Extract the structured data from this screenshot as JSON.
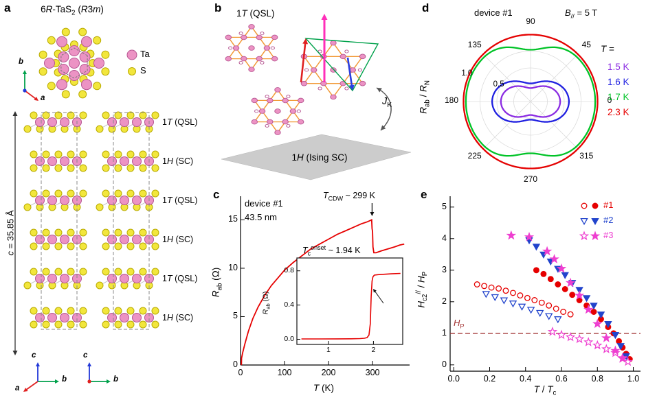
{
  "figure": {
    "background": "#ffffff",
    "panels": {
      "a": {
        "label": "a",
        "title_html": "6<i>R</i>-TaS<sub>2</sub> (<i>R</i>3<i>m</i>)",
        "legend": {
          "ta_label": "Ta",
          "s_label": "S"
        },
        "atom_colors": {
          "ta": "#ec93c4",
          "ta_stroke": "#b65591",
          "s": "#f2e63c",
          "s_stroke": "#b9ab00"
        },
        "layer_labels_html": [
          "1<i>T</i> (QSL)",
          "1<i>H</i> (SC)",
          "1<i>T</i> (QSL)",
          "1<i>H</i> (SC)",
          "1<i>T</i> (QSL)",
          "1<i>H</i> (SC)"
        ],
        "c_axis_label_html": "<i>c</i> = 35.85 Å",
        "axis_letters": {
          "a": "a",
          "b": "b",
          "c": "c"
        },
        "axis_colors": {
          "a": "#e02020",
          "b": "#00a14b",
          "c": "#2238d8"
        }
      },
      "b": {
        "label": "b",
        "top_label_html": "1<i>T</i> (QSL)",
        "plane_label_html": "1<i>H</i> (Ising SC)",
        "coupling_label_html": "<i>J</i><sub>K</sub>",
        "colors": {
          "atom": "#ec93c4",
          "atom_stroke": "#b65591",
          "bond": "#f29a38",
          "spin_magenta": "#ff2fb9",
          "spin_red": "#e02020",
          "spin_blue": "#2b3fe0",
          "cell": "#00a14b",
          "plane": "#cccccc"
        }
      },
      "c": {
        "label": "c"
      },
      "d": {
        "label": "d"
      },
      "e": {
        "label": "e"
      }
    }
  },
  "chart_data": [
    {
      "panel": "c",
      "type": "line",
      "device": "device #1",
      "thickness": "43.5 nm",
      "cdw_annotation_html": "<i>T</i><sub>CDW</sub> ~ 299 K",
      "cdw_temperature_K": 299,
      "xlabel_html": "<i>T</i> (K)",
      "ylabel_html": "<i>R</i><sub>ab</sub> (Ω)",
      "xlim": [
        0,
        378
      ],
      "ylim": [
        0,
        17.3
      ],
      "xticks": [
        0,
        100,
        200,
        300
      ],
      "yticks": [
        0,
        5,
        10,
        15
      ],
      "line_color": "#e60000",
      "points_T_R": [
        [
          1.5,
          0.0
        ],
        [
          2.0,
          0.05
        ],
        [
          2.3,
          0.7
        ],
        [
          5,
          1.3
        ],
        [
          10,
          2.2
        ],
        [
          18,
          3.5
        ],
        [
          28,
          4.8
        ],
        [
          40,
          6.0
        ],
        [
          55,
          7.2
        ],
        [
          70,
          8.2
        ],
        [
          85,
          9.0
        ],
        [
          100,
          9.8
        ],
        [
          120,
          10.6
        ],
        [
          140,
          11.3
        ],
        [
          160,
          12.0
        ],
        [
          180,
          12.5
        ],
        [
          200,
          13.0
        ],
        [
          220,
          13.5
        ],
        [
          240,
          13.9
        ],
        [
          260,
          14.3
        ],
        [
          275,
          14.6
        ],
        [
          288,
          14.8
        ],
        [
          296,
          14.95
        ],
        [
          298,
          15.0
        ],
        [
          299,
          14.1
        ],
        [
          300,
          13.8
        ],
        [
          301,
          12.2
        ],
        [
          303,
          11.6
        ],
        [
          308,
          11.6
        ],
        [
          320,
          11.8
        ],
        [
          335,
          12.0
        ],
        [
          350,
          12.2
        ],
        [
          362,
          12.4
        ],
        [
          372,
          12.5
        ]
      ],
      "inset": {
        "title_html": "<i>T</i><sub>c</sub><sup>onset</sup> ~ 1.94 K",
        "ylabel_html": "<i>R</i><sub>ab</sub> (Ω)",
        "tc_onset_K": 1.94,
        "xlim": [
          0.3,
          2.65
        ],
        "ylim": [
          -0.06,
          0.95
        ],
        "xticks": [
          1,
          2
        ],
        "yticks": [
          "0.0",
          "0.4",
          "0.8"
        ],
        "points_T_R": [
          [
            0.4,
            0.004
          ],
          [
            0.8,
            0.004
          ],
          [
            1.2,
            0.005
          ],
          [
            1.5,
            0.006
          ],
          [
            1.7,
            0.008
          ],
          [
            1.8,
            0.012
          ],
          [
            1.86,
            0.02
          ],
          [
            1.9,
            0.05
          ],
          [
            1.93,
            0.18
          ],
          [
            1.95,
            0.5
          ],
          [
            1.97,
            0.68
          ],
          [
            1.99,
            0.73
          ],
          [
            2.02,
            0.75
          ],
          [
            2.1,
            0.755
          ],
          [
            2.25,
            0.76
          ],
          [
            2.4,
            0.765
          ],
          [
            2.6,
            0.77
          ]
        ]
      }
    },
    {
      "panel": "d",
      "type": "polar",
      "device": "device #1",
      "field_html": "<i>B</i><sub>//</sub> = 5 T",
      "radial_label_html": "<i>R</i><sub>ab</sub> / <i>R</i><sub>N</sub>",
      "legend_title_html": "<i>T</i> =",
      "angle_ticks_deg": [
        90,
        45,
        0,
        315,
        270,
        225,
        180,
        135
      ],
      "radial_ticks": [
        0.5,
        1.0
      ],
      "series": [
        {
          "label": "1.5 K",
          "color": "#8a2be2",
          "shape": "lobe",
          "r_max": 0.44,
          "r_min": 0.2
        },
        {
          "label": "1.6 K",
          "color": "#1f1fe0",
          "shape": "lobe",
          "r_max": 0.57,
          "r_min": 0.27
        },
        {
          "label": "1.7 K",
          "color": "#00c327",
          "shape": "dip",
          "r_max": 0.96,
          "r_min": 0.77,
          "dip_power": 10
        },
        {
          "label": "2.3 K",
          "color": "#e60000",
          "shape": "circle",
          "r": 0.995
        }
      ]
    },
    {
      "panel": "e",
      "type": "scatter",
      "xlabel_html": "<i>T</i> / <i>T</i><sub>c</sub>",
      "ylabel_html": "<i>H</i><sub>c2</sub><sup>//</sup> / <i>H</i><sub>P</sub>",
      "xlim": [
        0,
        1.0
      ],
      "ylim": [
        0,
        5
      ],
      "xticks": [
        "0.0",
        "0.2",
        "0.4",
        "0.6",
        "0.8",
        "1.0"
      ],
      "yticks": [
        0,
        1,
        2,
        3,
        4,
        5
      ],
      "pauli_line": {
        "value": 1,
        "label_html": "<i>H</i><sub>P</sub>",
        "color": "#a33535"
      },
      "legend": [
        {
          "label": "#1",
          "color": "#e60000",
          "marker": "circle"
        },
        {
          "label": "#2",
          "color": "#2244cc",
          "marker": "triangle-down"
        },
        {
          "label": "#3",
          "color": "#ee3fd0",
          "marker": "star"
        }
      ],
      "series": [
        {
          "device": "#1",
          "marker": "circle",
          "fill": "open",
          "color": "#e60000",
          "points": [
            [
              0.13,
              2.55
            ],
            [
              0.17,
              2.5
            ],
            [
              0.21,
              2.45
            ],
            [
              0.25,
              2.42
            ],
            [
              0.29,
              2.35
            ],
            [
              0.33,
              2.28
            ],
            [
              0.37,
              2.2
            ],
            [
              0.41,
              2.12
            ],
            [
              0.45,
              2.05
            ],
            [
              0.49,
              1.97
            ],
            [
              0.53,
              1.88
            ],
            [
              0.57,
              1.78
            ],
            [
              0.61,
              1.68
            ],
            [
              0.65,
              1.6
            ]
          ]
        },
        {
          "device": "#1",
          "marker": "circle",
          "fill": "solid",
          "color": "#e60000",
          "points": [
            [
              0.46,
              3.0
            ],
            [
              0.5,
              2.88
            ],
            [
              0.54,
              2.72
            ],
            [
              0.58,
              2.55
            ],
            [
              0.62,
              2.4
            ],
            [
              0.66,
              2.22
            ],
            [
              0.7,
              2.05
            ],
            [
              0.74,
              1.88
            ],
            [
              0.78,
              1.68
            ],
            [
              0.82,
              1.45
            ],
            [
              0.86,
              1.2
            ],
            [
              0.89,
              1.0
            ],
            [
              0.92,
              0.75
            ],
            [
              0.94,
              0.55
            ],
            [
              0.96,
              0.35
            ],
            [
              0.98,
              0.18
            ]
          ]
        },
        {
          "device": "#2",
          "marker": "triangle-down",
          "fill": "open",
          "color": "#2244cc",
          "points": [
            [
              0.18,
              2.25
            ],
            [
              0.23,
              2.15
            ],
            [
              0.28,
              2.05
            ],
            [
              0.33,
              1.95
            ],
            [
              0.38,
              1.85
            ],
            [
              0.43,
              1.75
            ],
            [
              0.48,
              1.65
            ],
            [
              0.53,
              1.55
            ],
            [
              0.58,
              1.45
            ]
          ]
        },
        {
          "device": "#2",
          "marker": "triangle-down",
          "fill": "solid",
          "color": "#2244cc",
          "points": [
            [
              0.42,
              3.95
            ],
            [
              0.46,
              3.75
            ],
            [
              0.5,
              3.5
            ],
            [
              0.54,
              3.28
            ],
            [
              0.58,
              3.05
            ],
            [
              0.62,
              2.85
            ],
            [
              0.66,
              2.6
            ],
            [
              0.7,
              2.38
            ],
            [
              0.74,
              2.12
            ],
            [
              0.78,
              1.88
            ],
            [
              0.82,
              1.6
            ],
            [
              0.86,
              1.3
            ],
            [
              0.9,
              0.95
            ],
            [
              0.93,
              0.6
            ],
            [
              0.96,
              0.28
            ]
          ]
        },
        {
          "device": "#3",
          "marker": "star",
          "fill": "open",
          "color": "#ee3fd0",
          "points": [
            [
              0.55,
              1.05
            ],
            [
              0.6,
              0.95
            ],
            [
              0.65,
              0.88
            ],
            [
              0.7,
              0.82
            ],
            [
              0.75,
              0.72
            ],
            [
              0.8,
              0.62
            ],
            [
              0.85,
              0.5
            ],
            [
              0.9,
              0.38
            ],
            [
              0.94,
              0.22
            ],
            [
              0.97,
              0.1
            ]
          ]
        },
        {
          "device": "#3",
          "marker": "star",
          "fill": "solid",
          "color": "#ee3fd0",
          "points": [
            [
              0.32,
              4.1
            ],
            [
              0.42,
              4.05
            ],
            [
              0.52,
              3.6
            ],
            [
              0.56,
              3.35
            ],
            [
              0.6,
              3.05
            ],
            [
              0.65,
              2.6
            ],
            [
              0.7,
              2.2
            ],
            [
              0.75,
              1.75
            ],
            [
              0.8,
              1.3
            ],
            [
              0.85,
              0.85
            ],
            [
              0.9,
              0.45
            ],
            [
              0.94,
              0.2
            ]
          ]
        }
      ]
    }
  ]
}
